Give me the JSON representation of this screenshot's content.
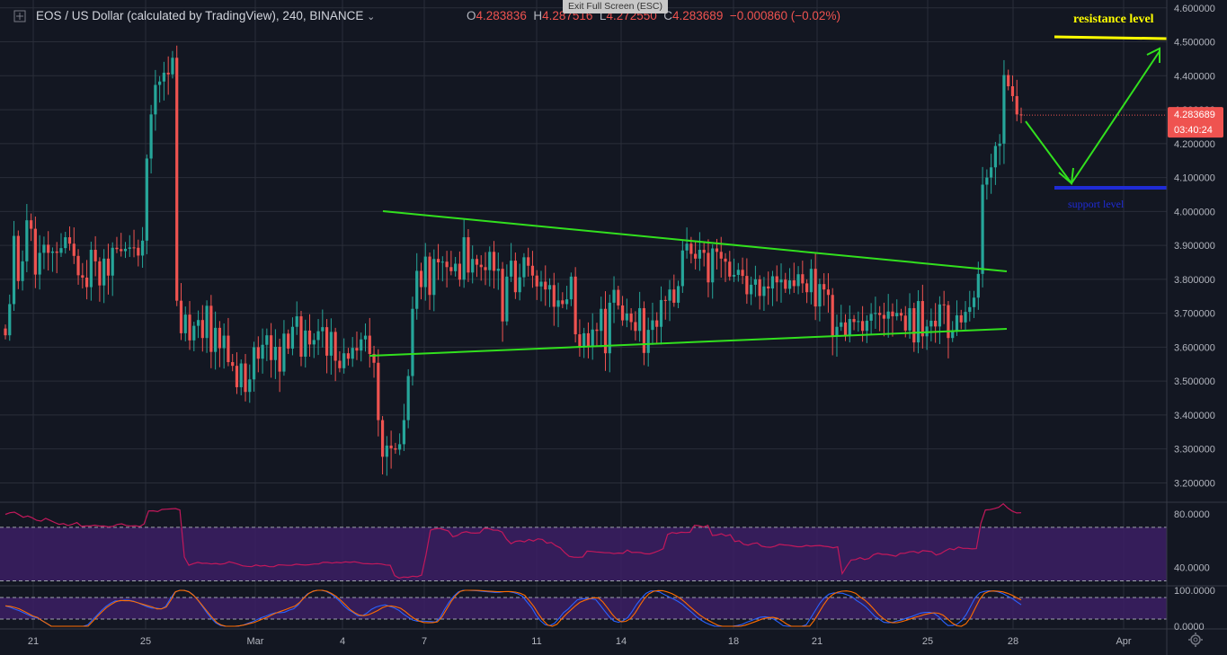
{
  "header": {
    "symbol": "EOS / US Dollar (calculated by TradingView), 240, BINANCE",
    "open_label": "O",
    "open": "4.283836",
    "high_label": "H",
    "high": "4.287516",
    "low_label": "L",
    "low": "4.272550",
    "close_label": "C",
    "close": "4.283689",
    "change": "−0.000860 (−0.02%)",
    "exit_fullscreen": "Exit Full Screen (ESC)"
  },
  "annotations": {
    "resistance_label": "resistance level",
    "support_label": "support level"
  },
  "price_tag": {
    "price": "4.283689",
    "countdown": "03:40:24"
  },
  "colors": {
    "background": "#131722",
    "grid": "#2a2e39",
    "up": "#26a69a",
    "down": "#ef5350",
    "trendline": "#32e01e",
    "resistance": "#ffff00",
    "support": "#1f2bd6",
    "rsi_line": "#c2185b",
    "rsi_band": "#3c1e64",
    "stoch_k": "#2962ff",
    "stoch_d": "#ff6d00",
    "stoch_band": "#3c1e64"
  },
  "icons": {
    "top_left": "crosshair-plus-icon",
    "bottom_right": "gear-icon"
  },
  "chart_data": [
    {
      "type": "candlestick",
      "title": "EOS / US Dollar (calculated by TradingView), 240, BINANCE",
      "y_ticks": [
        "3.200000",
        "3.300000",
        "3.400000",
        "3.500000",
        "3.600000",
        "3.700000",
        "3.800000",
        "3.900000",
        "4.000000",
        "4.100000",
        "4.200000",
        "4.300000",
        "4.400000",
        "4.500000",
        "4.600000"
      ],
      "x_ticks": [
        "21",
        "25",
        "Mar",
        "4",
        "7",
        "11",
        "14",
        "18",
        "21",
        "25",
        "28",
        "Apr"
      ],
      "ylim": [
        3.18,
        4.61
      ],
      "grid": true,
      "close": [
        3.635,
        3.727,
        3.928,
        3.795,
        3.853,
        3.974,
        3.949,
        3.814,
        3.878,
        3.902,
        3.878,
        3.882,
        3.878,
        3.892,
        3.924,
        3.905,
        3.869,
        3.812,
        3.805,
        3.777,
        3.887,
        3.853,
        3.782,
        3.861,
        3.811,
        3.893,
        3.889,
        3.883,
        3.89,
        3.894,
        3.893,
        3.87,
        3.914,
        4.156,
        4.286,
        4.373,
        4.383,
        4.409,
        4.404,
        4.453,
        3.737,
        3.641,
        3.696,
        3.62,
        3.663,
        3.68,
        3.627,
        3.722,
        3.586,
        3.657,
        3.597,
        3.634,
        3.556,
        3.545,
        3.482,
        3.552,
        3.468,
        3.505,
        3.6,
        3.566,
        3.607,
        3.635,
        3.562,
        3.601,
        3.528,
        3.64,
        3.596,
        3.66,
        3.691,
        3.572,
        3.649,
        3.608,
        3.621,
        3.647,
        3.659,
        3.575,
        3.645,
        3.56,
        3.538,
        3.582,
        3.566,
        3.598,
        3.59,
        3.623,
        3.634,
        3.58,
        3.554,
        3.385,
        3.277,
        3.31,
        3.302,
        3.298,
        3.314,
        3.385,
        3.515,
        3.713,
        3.825,
        3.777,
        3.867,
        3.754,
        3.86,
        3.85,
        3.852,
        3.836,
        3.824,
        3.846,
        3.799,
        3.924,
        3.82,
        3.86,
        3.843,
        3.836,
        3.827,
        3.881,
        3.825,
        3.831,
        3.676,
        3.808,
        3.855,
        3.762,
        3.806,
        3.865,
        3.84,
        3.811,
        3.779,
        3.793,
        3.77,
        3.783,
        3.719,
        3.738,
        3.727,
        3.741,
        3.808,
        3.638,
        3.6,
        3.641,
        3.603,
        3.652,
        3.648,
        3.713,
        3.582,
        3.731,
        3.769,
        3.723,
        3.679,
        3.699,
        3.674,
        3.648,
        3.715,
        3.583,
        3.651,
        3.679,
        3.66,
        3.739,
        3.737,
        3.77,
        3.731,
        3.78,
        3.885,
        3.905,
        3.875,
        3.861,
        3.887,
        3.878,
        3.791,
        3.891,
        3.881,
        3.861,
        3.852,
        3.808,
        3.813,
        3.828,
        3.81,
        3.756,
        3.784,
        3.8,
        3.751,
        3.779,
        3.773,
        3.809,
        3.791,
        3.799,
        3.772,
        3.797,
        3.78,
        3.815,
        3.788,
        3.762,
        3.831,
        3.72,
        3.786,
        3.77,
        3.754,
        3.632,
        3.66,
        3.673,
        3.634,
        3.683,
        3.674,
        3.677,
        3.648,
        3.678,
        3.698,
        3.701,
        3.695,
        3.684,
        3.705,
        3.691,
        3.701,
        3.693,
        3.649,
        3.715,
        3.614,
        3.736,
        3.632,
        3.661,
        3.678,
        3.661,
        3.726,
        3.724,
        3.627,
        3.649,
        3.694,
        3.673,
        3.704,
        3.718,
        3.746,
        3.816,
        4.079,
        4.1,
        4.13,
        4.193,
        4.2,
        4.402,
        4.369,
        4.34,
        4.286,
        4.284
      ]
    },
    {
      "type": "line",
      "title": "RSI",
      "y_ticks": [
        "40.0000",
        "80.0000"
      ],
      "band": [
        30,
        70
      ],
      "ylim": [
        27,
        88
      ],
      "values": [
        79.6,
        80.8,
        81.3,
        79.5,
        77.5,
        78.4,
        77.1,
        75.2,
        74.6,
        76.7,
        75.1,
        73.6,
        72.2,
        72.7,
        71.3,
        72.3,
        73.5,
        70.8,
        71.0,
        71.0,
        71.6,
        70.9,
        71.0,
        70.3,
        70.7,
        72.1,
        72.6,
        71.4,
        70.9,
        71.2,
        70.6,
        72.5,
        82.2,
        82.3,
        81.7,
        83.3,
        83.5,
        83.7,
        84.0,
        82.9,
        47.8,
        41.7,
        42.9,
        43.8,
        43.1,
        43.2,
        42.6,
        43.0,
        42.4,
        42.9,
        44.2,
        43.5,
        42.5,
        41.3,
        40.9,
        40.6,
        41.9,
        41.1,
        41.5,
        40.6,
        40.7,
        42.0,
        41.9,
        41.6,
        41.7,
        42.5,
        42.1,
        41.8,
        42.1,
        42.6,
        42.6,
        43.9,
        43.8,
        43.3,
        43.8,
        43.5,
        44.2,
        43.8,
        44.3,
        43.6,
        42.9,
        42.8,
        42.6,
        42.9,
        42.6,
        41.9,
        41.7,
        33.9,
        32.1,
        32.9,
        32.6,
        33.5,
        33.1,
        34.3,
        49.4,
        67.8,
        68.8,
        69.2,
        68.2,
        67.3,
        62.9,
        63.9,
        66.0,
        66.7,
        65.8,
        65.6,
        65.9,
        69.2,
        69.1,
        67.9,
        67.8,
        66.4,
        61.1,
        57.8,
        59.5,
        59.9,
        59.1,
        60.9,
        59.7,
        61.4,
        60.9,
        58.2,
        58.7,
        56.3,
        54.6,
        51.1,
        48.3,
        47.7,
        47.6,
        47.8,
        52.2,
        52.0,
        51.6,
        51.4,
        51.0,
        51.0,
        50.3,
        50.8,
        50.5,
        53.0,
        51.2,
        51.3,
        51.1,
        50.2,
        50.1,
        51.2,
        52.5,
        54.0,
        64.7,
        66.1,
        65.5,
        66.3,
        66.1,
        66.3,
        71.5,
        71.2,
        70.2,
        71.5,
        63.9,
        64.2,
        65.2,
        63.5,
        64.5,
        59.4,
        59.9,
        57.3,
        56.7,
        57.9,
        58.4,
        55.9,
        55.3,
        55.1,
        55.9,
        57.3,
        56.8,
        56.6,
        56.1,
        55.5,
        55.5,
        56.5,
        55.9,
        56.2,
        56.4,
        55.8,
        55.5,
        54.7,
        55.4,
        35.4,
        40.9,
        45.6,
        45.9,
        47.3,
        46.0,
        46.7,
        49.5,
        50.6,
        49.8,
        49.8,
        49.1,
        48.4,
        50.5,
        50.6,
        51.7,
        52.0,
        50.8,
        52.6,
        52.2,
        51.9,
        49.3,
        50.3,
        52.4,
        54.1,
        53.3,
        55.2,
        54.3,
        54.3,
        53.9,
        54.1,
        73.0,
        82.9,
        83.2,
        83.9,
        84.9,
        87.5,
        84.4,
        82.1,
        80.7,
        80.8
      ]
    },
    {
      "type": "line",
      "title": "Stoch",
      "y_ticks": [
        "100.0000",
        "0.0000"
      ],
      "band": [
        20,
        80
      ],
      "ylim": [
        -5,
        110
      ],
      "series": [
        {
          "values": [
            56.5,
            53.1,
            47.8,
            43.4,
            37.5,
            31.4,
            26.3,
            23.0,
            16.0,
            7.9,
            -0.0,
            0.0,
            0.0,
            0.0,
            0.0,
            0.0,
            0.0,
            0.0,
            3.7,
            17.4,
            30.3,
            44.0,
            55.4,
            63.9,
            70.6,
            70.6,
            72.8,
            72.4,
            69.9,
            65.0,
            59.6,
            54.2,
            50.6,
            50.6,
            48.0,
            55.0,
            75.5,
            94.0,
            100.0,
            100.0,
            97.0,
            88.0,
            74.0,
            56.0,
            38.0,
            22.0,
            9.3,
            2.3,
            0.0,
            0.0,
            0.0,
            0.6,
            3.4,
            8.0,
            12.6,
            18.4,
            24.1,
            28.6,
            33.7,
            37.3,
            37.7,
            39.1,
            44.8,
            48.7,
            59.6,
            76.5,
            89.8,
            95.7,
            100.0,
            99.9,
            97.5,
            90.9,
            81.8,
            70.6,
            56.3,
            45.4,
            38.3,
            29.2,
            29.2,
            36.6,
            47.0,
            53.4,
            57.3,
            59.4,
            55.1,
            51.0,
            44.4,
            34.1,
            25.6,
            17.6,
            14.2,
            14.4,
            13.8,
            13.1,
            11.7,
            24.0,
            47.2,
            67.3,
            83.5,
            95.5,
            100.0,
            100.0,
            99.6,
            98.8,
            97.7,
            96.2,
            95.5,
            94.2,
            94.6,
            96.3,
            96.4,
            94.0,
            90.0,
            83.6,
            67.5,
            52.3,
            30.6,
            14.9,
            4.1,
            1.7,
            8.1,
            21.7,
            38.0,
            47.9,
            60.9,
            73.4,
            76.3,
            76.8,
            76.8,
            74.4,
            58.7,
            42.1,
            26.3,
            14.6,
            10.9,
            15.4,
            23.7,
            41.5,
            61.3,
            77.8,
            91.3,
            98.0,
            98.3,
            95.2,
            87.9,
            82.1,
            76.1,
            69.1,
            60.8,
            49.5,
            39.1,
            27.1,
            17.4,
            10.1,
            4.4,
            0.3,
            0.0,
            0.0,
            0.0,
            0.2,
            2.0,
            5.1,
            10.9,
            15.4,
            20.9,
            25.3,
            26.4,
            24.3,
            19.3,
            10.8,
            1.5,
            0.0,
            0.0,
            0.0,
            0.0,
            3.8,
            23.0,
            43.4,
            64.0,
            79.3,
            89.2,
            92.7,
            92.8,
            91.8,
            87.2,
            82.4,
            71.7,
            63.9,
            54.3,
            41.2,
            27.8,
            19.5,
            11.0,
            9.7,
            11.2,
            15.2,
            18.0,
            22.8,
            26.7,
            31.6,
            36.5,
            38.4,
            38.4,
            35.4,
            26.5,
            13.0,
            1.9,
            1.9,
            5.6,
            16.1,
            32.8,
            56.5,
            80.5,
            93.4,
            97.1,
            98.5,
            97.7,
            95.8,
            91.1,
            84.3,
            77.7,
            68.5,
            59.7
          ]
        },
        {
          "values": [
            56.8,
            55.6,
            52.5,
            48.6,
            42.1,
            35.2,
            28.5,
            24.4,
            15.4,
            7.9,
            0.0,
            0.0,
            0.0,
            0.0,
            0.0,
            0.0,
            0.0,
            0.0,
            0.0,
            13.6,
            27.5,
            39.9,
            51.9,
            60.6,
            68.1,
            71.7,
            71.1,
            70.9,
            68.4,
            64.8,
            60.7,
            57.0,
            53.5,
            48.2,
            48.4,
            53.6,
            72.8,
            95.9,
            100.0,
            99.4,
            95.2,
            85.3,
            71.1,
            55.5,
            39.4,
            24.1,
            10.5,
            3.3,
            0.0,
            0.0,
            0.0,
            1.6,
            3.6,
            7.0,
            10.1,
            15.1,
            20.3,
            25.2,
            31.7,
            37.6,
            42.1,
            46.6,
            51.6,
            56.3,
            66.1,
            79.4,
            91.2,
            98.1,
            100.0,
            99.9,
            97.1,
            91.1,
            83.0,
            71.5,
            59.2,
            46.3,
            37.6,
            30.9,
            29.4,
            31.9,
            37.6,
            43.7,
            51.5,
            56.2,
            56.4,
            54.1,
            49.9,
            40.9,
            30.3,
            21.1,
            14.5,
            10.4,
            9.7,
            10.3,
            12.3,
            26.1,
            48.0,
            69.3,
            86.1,
            97.2,
            100.0,
            100.0,
            99.9,
            99.4,
            98.7,
            97.7,
            97.1,
            96.3,
            96.1,
            96.5,
            96.4,
            94.9,
            91.7,
            86.1,
            70.7,
            54.6,
            34.0,
            16.6,
            3.4,
            -0.0,
            5.6,
            20.1,
            33.6,
            44.9,
            56.6,
            66.6,
            72.1,
            76.3,
            79.2,
            79.1,
            67.6,
            51.0,
            33.8,
            19.8,
            12.4,
            13.7,
            21.3,
            36.7,
            57.3,
            76.2,
            90.1,
            97.2,
            99.3,
            99.0,
            95.4,
            91.1,
            84.0,
            75.9,
            65.6,
            53.4,
            42.7,
            31.9,
            23.2,
            15.9,
            8.9,
            2.7,
            0.0,
            0.0,
            0.0,
            0.0,
            0.0,
            3.1,
            7.6,
            12.0,
            17.0,
            21.4,
            24.1,
            24.8,
            22.0,
            14.7,
            5.9,
            0.1,
            0.0,
            0.0,
            0.0,
            0.4,
            16.7,
            38.0,
            59.1,
            77.1,
            88.2,
            94.8,
            97.6,
            98.3,
            96.2,
            91.7,
            81.2,
            72.5,
            60.7,
            46.9,
            32.5,
            21.8,
            13.4,
            9.7,
            10.0,
            12.8,
            16.4,
            20.7,
            25.2,
            28.6,
            32.7,
            35.4,
            37.4,
            36.3,
            31.0,
            20.6,
            8.9,
            1.3,
            0.0,
            7.1,
            24.8,
            50.2,
            75.2,
            91.5,
            96.9,
            98.3,
            97.3,
            95.7,
            91.8,
            86.5,
            79.8,
            73.4
          ]
        }
      ]
    }
  ]
}
